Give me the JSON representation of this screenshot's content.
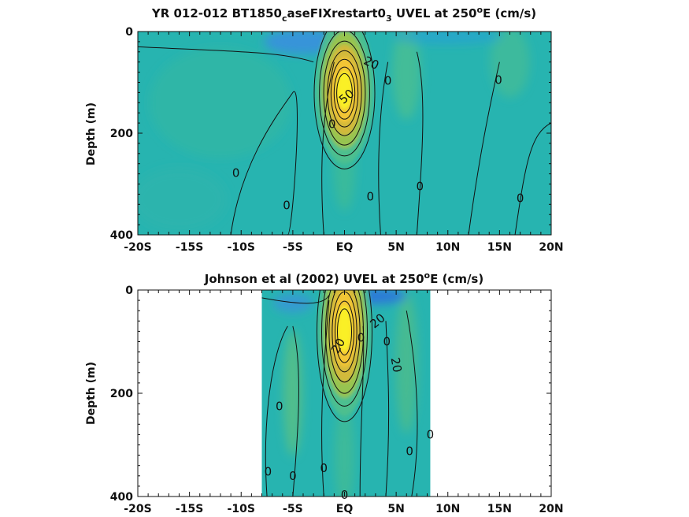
{
  "chart_data": [
    {
      "type": "heatmap",
      "title": {
        "pre": "YR 012-012 BT1850",
        "sub1": "c",
        "mid": "aseFIXrestart0",
        "sub2": "3",
        "post": " UVEL at 250",
        "sup": "o",
        "tail": "E (cm/s)"
      },
      "ylabel": "Depth (m)",
      "ylim": [
        0,
        400
      ],
      "xlim": [
        -20,
        20
      ],
      "y_reversed": true,
      "data_extent": [
        -20,
        20
      ],
      "x_tick_labels": [
        "-20S",
        "-15S",
        "-10S",
        "-5S",
        "EQ",
        "5N",
        "10N",
        "15N",
        "20N"
      ],
      "x_tick_values": [
        -20,
        -15,
        -10,
        -5,
        0,
        5,
        10,
        15,
        20
      ],
      "y_tick_labels": [
        "0",
        "200",
        "400"
      ],
      "y_tick_values": [
        0,
        200,
        400
      ],
      "colormap": "parula",
      "contour_labels": [
        {
          "text": "20",
          "x": 2.6,
          "y": 62,
          "angle": 25
        },
        {
          "text": "0",
          "x": 4.2,
          "y": 97,
          "angle": 0
        },
        {
          "text": "0",
          "x": 14.9,
          "y": 95,
          "angle": 0
        },
        {
          "text": "50",
          "x": 0.2,
          "y": 128,
          "angle": -40
        },
        {
          "text": "0",
          "x": -1.2,
          "y": 182,
          "angle": 0
        },
        {
          "text": "0",
          "x": -10.5,
          "y": 278,
          "angle": 0
        },
        {
          "text": "0",
          "x": -5.6,
          "y": 342,
          "angle": 0
        },
        {
          "text": "0",
          "x": 2.5,
          "y": 325,
          "angle": 0
        },
        {
          "text": "0",
          "x": 7.3,
          "y": 305,
          "angle": 0
        },
        {
          "text": "0",
          "x": 17.0,
          "y": 328,
          "angle": 0
        }
      ],
      "core": {
        "x": 0.0,
        "y": 115,
        "peak": 80
      }
    },
    {
      "type": "heatmap",
      "title": {
        "pre": "Johnson et al (2002) UVEL at 250",
        "sup": "o",
        "tail": "E (cm/s)"
      },
      "ylabel": "Depth (m)",
      "ylim": [
        0,
        400
      ],
      "xlim": [
        -20,
        20
      ],
      "y_reversed": true,
      "data_extent": [
        -8,
        8.3
      ],
      "x_tick_labels": [
        "-20S",
        "-15S",
        "-10S",
        "-5S",
        "EQ",
        "5N",
        "10N",
        "15N",
        "20N"
      ],
      "x_tick_values": [
        -20,
        -15,
        -10,
        -5,
        0,
        5,
        10,
        15,
        20
      ],
      "y_tick_labels": [
        "0",
        "200",
        "400"
      ],
      "y_tick_values": [
        0,
        200,
        400
      ],
      "colormap": "parula",
      "contour_labels": [
        {
          "text": "20",
          "x": 3.2,
          "y": 60,
          "angle": -40
        },
        {
          "text": "20",
          "x": -0.6,
          "y": 108,
          "angle": -60
        },
        {
          "text": "0",
          "x": 1.6,
          "y": 92,
          "angle": 0
        },
        {
          "text": "0",
          "x": 4.1,
          "y": 100,
          "angle": 0
        },
        {
          "text": "20",
          "x": 5.0,
          "y": 145,
          "angle": 80
        },
        {
          "text": "0",
          "x": -6.3,
          "y": 225,
          "angle": 0
        },
        {
          "text": "0",
          "x": 8.3,
          "y": 280,
          "angle": 0
        },
        {
          "text": "0",
          "x": 6.3,
          "y": 312,
          "angle": 0
        },
        {
          "text": "0",
          "x": -7.4,
          "y": 352,
          "angle": 0
        },
        {
          "text": "0",
          "x": -5.0,
          "y": 360,
          "angle": 0
        },
        {
          "text": "0",
          "x": -2.0,
          "y": 345,
          "angle": 0
        },
        {
          "text": "0",
          "x": 0.0,
          "y": 397,
          "angle": 0
        }
      ],
      "core": {
        "x": 0.0,
        "y": 75,
        "peak": 80
      }
    }
  ]
}
